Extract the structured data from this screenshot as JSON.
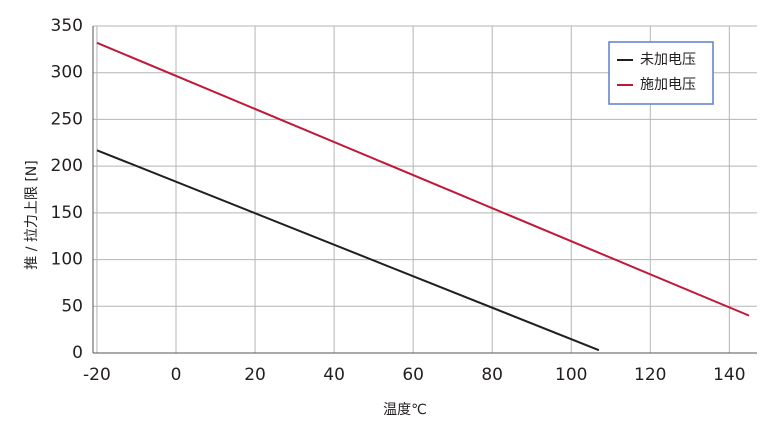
{
  "chart_data": {
    "type": "line",
    "x_label": "温度℃",
    "y_label": "推 / 拉力上限 [N]",
    "series": [
      {
        "name": "未加电压",
        "color": "#231f20",
        "x": [
          -20,
          107
        ],
        "values": [
          217,
          3
        ]
      },
      {
        "name": "施加电压",
        "color": "#c0183a",
        "x": [
          -20,
          145
        ],
        "values": [
          332,
          40
        ]
      }
    ],
    "xlim": [
      -21,
      147
    ],
    "xticks": [
      -20,
      0,
      20,
      40,
      60,
      80,
      100,
      120,
      140
    ],
    "ylim": [
      0,
      350
    ],
    "yticks": [
      0,
      50,
      100,
      150,
      200,
      250,
      300,
      350
    ],
    "grid": true,
    "legend": "upper-right"
  }
}
